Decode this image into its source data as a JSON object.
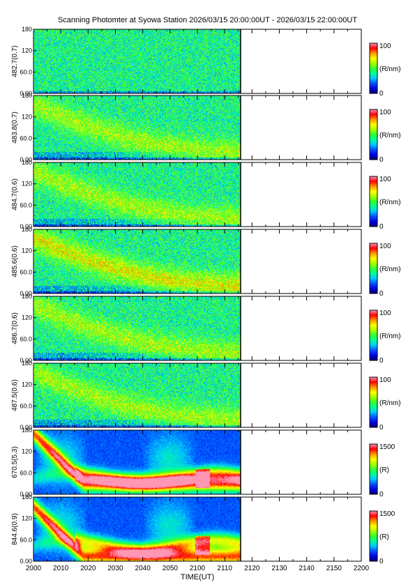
{
  "title": "Scanning Photomter at Syowa Station 2026/03/15 20:00:00UT - 2026/03/15 22:00:00UT",
  "xlabel": "TIME(UT)",
  "colors": {
    "colormap": [
      "#00006e",
      "#0000e6",
      "#0050ff",
      "#00c8ff",
      "#00ff96",
      "#32ff32",
      "#aaff00",
      "#ffff00",
      "#ff9600",
      "#ff0000",
      "#ff96b4"
    ]
  },
  "chart_data": {
    "type": "heatmap",
    "title": "Scanning Photomter at Syowa Station 2026/03/15 20:00:00UT - 2026/03/15 22:00:00UT",
    "xlabel": "TIME(UT)",
    "x_ticks": [
      "2000",
      "2010",
      "2020",
      "2030",
      "2040",
      "2050",
      "2100",
      "2110",
      "2120",
      "2130",
      "2140",
      "2150",
      "2200"
    ],
    "x_range": [
      "20:00",
      "22:00"
    ],
    "data_end": "21:16",
    "y_ticks": [
      "0.00",
      "60.0",
      "120",
      "180"
    ],
    "y_range": [
      0,
      180
    ],
    "grid": false,
    "panels": [
      {
        "ylabel": "482.7(0.7)",
        "cbar_max": "100",
        "cbar_min": "0",
        "cbar_unit": "(R/nm)"
      },
      {
        "ylabel": "483.8(0.7)",
        "cbar_max": "100",
        "cbar_min": "0",
        "cbar_unit": "(R/nm)"
      },
      {
        "ylabel": "484.7(0.6)",
        "cbar_max": "100",
        "cbar_min": "0",
        "cbar_unit": "(R/nm)"
      },
      {
        "ylabel": "485.6(0.6)",
        "cbar_max": "100",
        "cbar_min": "0",
        "cbar_unit": "(R/nm)"
      },
      {
        "ylabel": "486.7(0.6)",
        "cbar_max": "100",
        "cbar_min": "0",
        "cbar_unit": "(R/nm)"
      },
      {
        "ylabel": "487.5(0.6)",
        "cbar_max": "100",
        "cbar_min": "0",
        "cbar_unit": "(R/nm)"
      },
      {
        "ylabel": "670.5(5.3)",
        "cbar_max": "1500",
        "cbar_min": "0",
        "cbar_unit": "(R)"
      },
      {
        "ylabel": "844.6(0.9)",
        "cbar_max": "1500",
        "cbar_min": "0",
        "cbar_unit": "(R)"
      }
    ]
  }
}
